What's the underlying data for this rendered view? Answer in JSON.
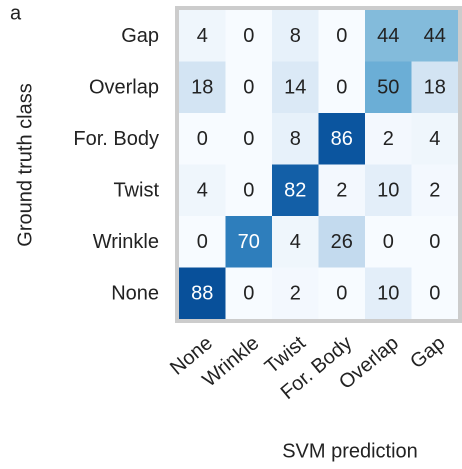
{
  "chart_data": {
    "type": "heatmap",
    "panel_label": "a",
    "x_label": "SVM prediction",
    "y_label": "Ground truth class",
    "x_categories": [
      "None",
      "Wrinkle",
      "Twist",
      "For. Body",
      "Overlap",
      "Gap"
    ],
    "y_categories": [
      "Gap",
      "Overlap",
      "For. Body",
      "Twist",
      "Wrinkle",
      "None"
    ],
    "values": [
      [
        4,
        0,
        8,
        0,
        44,
        44
      ],
      [
        18,
        0,
        14,
        0,
        50,
        18
      ],
      [
        0,
        0,
        8,
        86,
        2,
        4
      ],
      [
        4,
        0,
        82,
        2,
        10,
        2
      ],
      [
        0,
        70,
        4,
        26,
        0,
        0
      ],
      [
        88,
        0,
        2,
        0,
        10,
        0
      ]
    ],
    "colormap": "Blues"
  }
}
